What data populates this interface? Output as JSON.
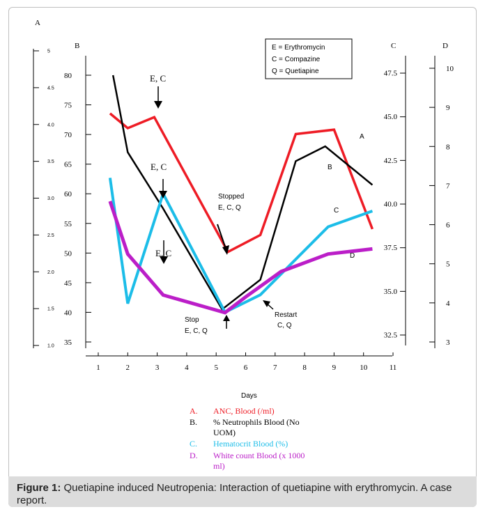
{
  "chart_data": {
    "type": "line",
    "xlabel": "Days",
    "x_ticks": [
      "1",
      "2",
      "3",
      "4",
      "5",
      "6",
      "7",
      "8",
      "9",
      "10",
      "11"
    ],
    "axes": {
      "A": {
        "label": "A",
        "ticks": [
          "1.0",
          "1.5",
          "2.0",
          "2.5",
          "3.0",
          "3.5",
          "4.0",
          "4.5",
          "5"
        ],
        "range": [
          1.0,
          5.0
        ]
      },
      "B": {
        "label": "B",
        "ticks": [
          "35",
          "40",
          "45",
          "50",
          "55",
          "60",
          "65",
          "70",
          "75",
          "80"
        ],
        "range": [
          35,
          80
        ]
      },
      "C": {
        "label": "C",
        "ticks": [
          "32.5",
          "35.0",
          "37.5",
          "40.0",
          "42.5",
          "45.0",
          "47.5"
        ],
        "range": [
          31.5,
          49
        ]
      },
      "D": {
        "label": "D",
        "ticks": [
          "3",
          "4",
          "5",
          "6",
          "7",
          "8",
          "9",
          "10"
        ],
        "range": [
          3,
          10
        ]
      }
    },
    "series": [
      {
        "key": "A",
        "axis": "A",
        "color": "#ee1c25",
        "label_color": "#ee1c25",
        "points": [
          [
            1.4,
            4.15
          ],
          [
            2.0,
            3.95
          ],
          [
            2.9,
            4.1
          ],
          [
            5.4,
            2.27
          ],
          [
            6.5,
            2.5
          ],
          [
            7.7,
            3.87
          ],
          [
            9.0,
            3.93
          ],
          [
            10.3,
            2.58
          ]
        ]
      },
      {
        "key": "B",
        "axis": "B",
        "color": "#000000",
        "label_color": "#000000",
        "points": [
          [
            1.5,
            80
          ],
          [
            2.0,
            67
          ],
          [
            3.2,
            57.5
          ],
          [
            5.2,
            40.5
          ],
          [
            6.5,
            45.5
          ],
          [
            7.7,
            65.5
          ],
          [
            8.7,
            68
          ],
          [
            10.3,
            61.5
          ]
        ]
      },
      {
        "key": "C",
        "axis": "C",
        "color": "#1cbde8",
        "label_color": "#1cbde8",
        "points": [
          [
            1.4,
            41.5
          ],
          [
            2.0,
            34.3
          ],
          [
            3.2,
            40.6
          ],
          [
            5.3,
            33.8
          ],
          [
            6.5,
            34.8
          ],
          [
            8.8,
            38.7
          ],
          [
            10.3,
            39.6
          ]
        ]
      },
      {
        "key": "D",
        "axis": "D",
        "color": "#bb1ec8",
        "label_color": "#bb1ec8",
        "points": [
          [
            1.4,
            6.6
          ],
          [
            2.0,
            5.25
          ],
          [
            3.2,
            4.2
          ],
          [
            5.3,
            3.75
          ],
          [
            6.0,
            4.15
          ],
          [
            7.2,
            4.8
          ],
          [
            8.8,
            5.25
          ],
          [
            10.3,
            5.38
          ]
        ]
      }
    ],
    "box_legend": [
      "E = Erythromycin",
      "C = Compazine",
      "Q = Quetiapine"
    ],
    "bottom_legend": [
      {
        "key": "A.",
        "text": "ANC, Blood (/ml)",
        "color": "#ee1c25"
      },
      {
        "key": "B.",
        "text": "% Neutrophils Blood (No",
        "text2": "UOM)",
        "color": "#000000"
      },
      {
        "key": "C.",
        "text": "Hematocrit Blood (%)",
        "color": "#1cbde8"
      },
      {
        "key": "D.",
        "text": "White count Blood (x 1000",
        "text2": "ml)",
        "color": "#bb1ec8"
      }
    ],
    "annotations": {
      "ec1": "E, C",
      "ec2": "E, C",
      "ec3": "E, C",
      "stopped_line1": "Stopped",
      "stopped_line2": "E, C, Q",
      "stop_line1": "Stop",
      "stop_line2": "E, C, Q",
      "restart_line1": "Restart",
      "restart_line2": "C, Q"
    }
  },
  "caption": {
    "label": "Figure 1:",
    "text": " Quetiapine induced Neutropenia: Interaction of quetiapine with erythromycin. A case report."
  }
}
